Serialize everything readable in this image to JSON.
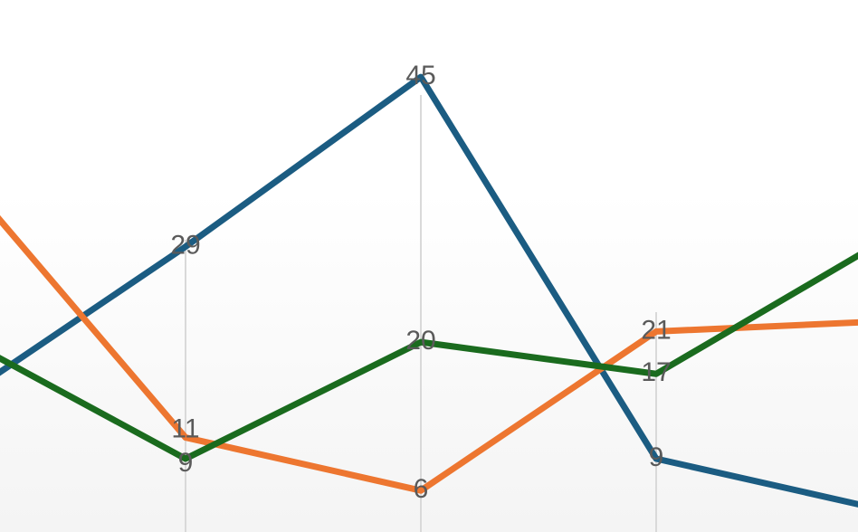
{
  "chart_data": {
    "type": "line",
    "title": "",
    "xlabel": "",
    "ylabel": "",
    "grid": "vertical lines at visible category positions",
    "legend": "none",
    "ylim": [
      0,
      50
    ],
    "series": [
      {
        "color": "#1b5c82",
        "points": [
          {
            "x": 0,
            "y": 14
          },
          {
            "x": 1,
            "y": 29,
            "label": "29"
          },
          {
            "x": 2,
            "y": 45,
            "label": "45"
          },
          {
            "x": 3,
            "y": 9,
            "label": "9"
          },
          {
            "x": 4,
            "y": 4
          }
        ]
      },
      {
        "color": "#ed7630",
        "points": [
          {
            "x": 0,
            "y": 37
          },
          {
            "x": 1,
            "y": 11,
            "label": "11"
          },
          {
            "x": 2,
            "y": 6,
            "label": "6"
          },
          {
            "x": 3,
            "y": 21,
            "label": "21"
          },
          {
            "x": 4,
            "y": 22
          }
        ]
      },
      {
        "color": "#1a6b1e",
        "points": [
          {
            "x": 0,
            "y": 21
          },
          {
            "x": 1,
            "y": 9,
            "label": "9"
          },
          {
            "x": 2,
            "y": 20,
            "label": "20"
          },
          {
            "x": 3,
            "y": 17,
            "label": "17"
          },
          {
            "x": 4,
            "y": 30
          }
        ]
      }
    ],
    "gridlines_x": [
      1,
      2,
      3
    ]
  }
}
